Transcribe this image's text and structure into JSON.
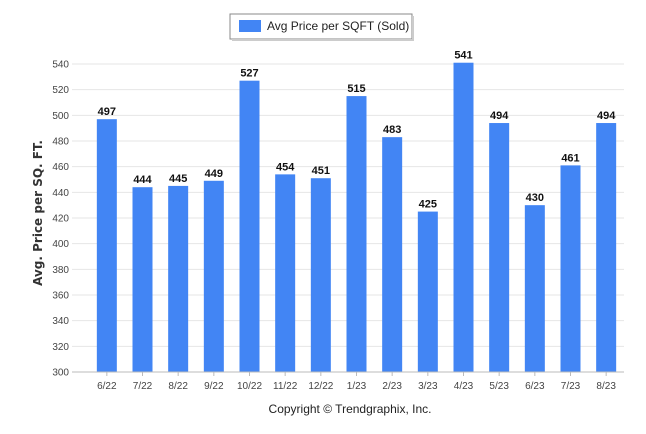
{
  "chart_data": {
    "type": "bar",
    "categories": [
      "6/22",
      "7/22",
      "8/22",
      "9/22",
      "10/22",
      "11/22",
      "12/22",
      "1/23",
      "2/23",
      "3/23",
      "4/23",
      "5/23",
      "6/23",
      "7/23",
      "8/23"
    ],
    "series": [
      {
        "name": "Avg Price per SQFT (Sold)",
        "values": [
          497,
          444,
          445,
          449,
          527,
          454,
          451,
          515,
          483,
          425,
          541,
          494,
          430,
          461,
          494
        ],
        "color": "#4285f4"
      }
    ],
    "title": "",
    "xlabel": "",
    "ylabel": "Avg. Price per SQ. FT.",
    "ylim": [
      300,
      540
    ],
    "yticks": [
      300,
      320,
      340,
      360,
      380,
      400,
      420,
      440,
      460,
      480,
      500,
      520,
      540
    ],
    "grid": true,
    "legend_position": "top-center",
    "data_labels": true
  },
  "footer": {
    "copyright": "Copyright © Trendgraphix, Inc."
  }
}
